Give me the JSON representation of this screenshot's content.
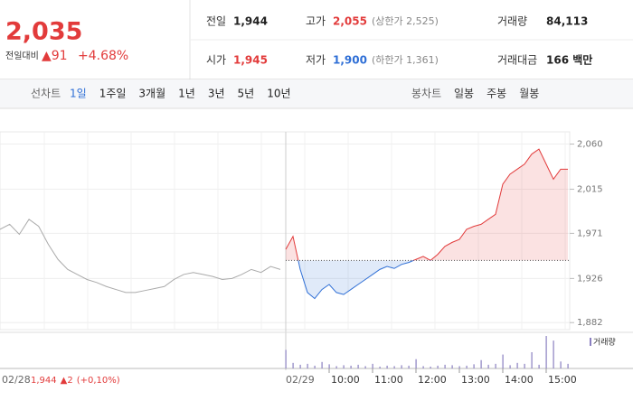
{
  "header": {
    "price": "2,035",
    "change_label": "전일대비",
    "change": "▲91",
    "change_pct": "+4.68%",
    "fields": [
      {
        "label": "전일",
        "value": "1,944"
      },
      {
        "label": "고가",
        "value": "2,055",
        "note": "(상한가 2,525)"
      },
      {
        "label": "거래량",
        "value": "84,113"
      },
      {
        "label": "시가",
        "value": "1,945"
      },
      {
        "label": "저가",
        "value": "1,900",
        "note": "(하한가 1,361)"
      },
      {
        "label": "거래대금",
        "value": "166 백만"
      }
    ],
    "prev_close": 1944
  },
  "tabs": {
    "line_label": "선차트",
    "line": [
      "1일",
      "1주일",
      "3개월",
      "1년",
      "3년",
      "5년",
      "10년"
    ],
    "candle_label": "봉차트",
    "candle": [
      "일봉",
      "주봉",
      "월봉"
    ]
  },
  "chart_data": {
    "type": "line",
    "ylim": [
      1875,
      2065
    ],
    "yticks": [
      {
        "value": 1882,
        "label": "1,882"
      },
      {
        "value": 1926,
        "label": "1,926"
      },
      {
        "value": 1971,
        "label": "1,971"
      },
      {
        "value": 2015,
        "label": "2,015"
      },
      {
        "value": 2060,
        "label": "2,060"
      }
    ],
    "prev_day": {
      "label": "02/28",
      "close": "1,944",
      "change": "▲2",
      "change_pct": "(+0,10%)",
      "color": "#aaaaaa",
      "values": [
        1975,
        1980,
        1970,
        1985,
        1978,
        1960,
        1945,
        1935,
        1930,
        1925,
        1922,
        1918,
        1915,
        1912,
        1912,
        1914,
        1916,
        1918,
        1925,
        1930,
        1932,
        1930,
        1928,
        1925,
        1926,
        1930,
        1935,
        1932,
        1938,
        1935
      ]
    },
    "day_label": "02/29",
    "x": [
      "09:00",
      "09:10",
      "09:20",
      "09:30",
      "09:40",
      "09:50",
      "10:00",
      "10:10",
      "10:20",
      "10:30",
      "10:40",
      "10:50",
      "11:00",
      "11:10",
      "11:20",
      "11:30",
      "11:40",
      "11:50",
      "12:00",
      "12:10",
      "12:20",
      "12:30",
      "12:40",
      "12:50",
      "13:00",
      "13:10",
      "13:20",
      "13:30",
      "13:40",
      "13:50",
      "14:00",
      "14:10",
      "14:20",
      "14:30",
      "14:40",
      "14:50",
      "15:00",
      "15:10",
      "15:20",
      "15:30"
    ],
    "xticks": [
      "10:00",
      "11:00",
      "12:00",
      "13:00",
      "14:00",
      "15:00"
    ],
    "series": [
      {
        "name": "거래량",
        "color": "#8a7fc0",
        "values": [
          40,
          12,
          8,
          10,
          6,
          14,
          9,
          5,
          7,
          6,
          8,
          5,
          10,
          4,
          6,
          5,
          7,
          6,
          20,
          5,
          4,
          6,
          8,
          7,
          5,
          6,
          9,
          18,
          8,
          10,
          30,
          7,
          12,
          10,
          35,
          8,
          70,
          60,
          15,
          10
        ]
      }
    ],
    "up_color": "#e23b3b",
    "down_color": "#2f6fd6",
    "values": [
      1955,
      1968,
      1935,
      1912,
      1906,
      1915,
      1920,
      1912,
      1910,
      1915,
      1920,
      1925,
      1930,
      1935,
      1938,
      1936,
      1940,
      1942,
      1945,
      1948,
      1944,
      1950,
      1958,
      1962,
      1965,
      1975,
      1978,
      1980,
      1985,
      1990,
      2020,
      2030,
      2035,
      2040,
      2050,
      2055,
      2040,
      2025,
      2035,
      2035
    ]
  }
}
